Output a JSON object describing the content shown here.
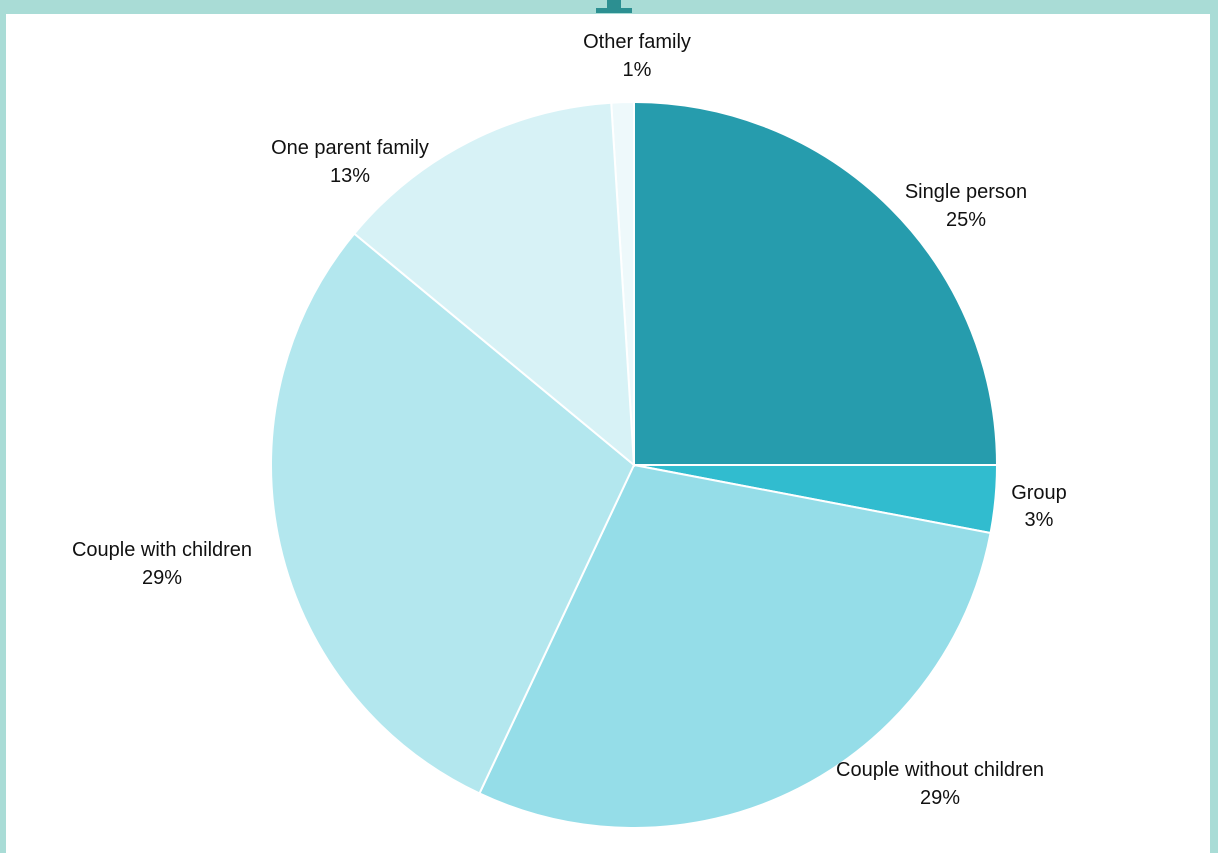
{
  "chart_data": {
    "type": "pie",
    "categories": [
      "Single person",
      "Group",
      "Couple without children",
      "Couple with children",
      "One parent family",
      "Other family"
    ],
    "values": [
      25,
      3,
      29,
      29,
      13,
      1
    ],
    "labels": [
      "25%",
      "3%",
      "29%",
      "29%",
      "13%",
      "1%"
    ],
    "colors": [
      "#269cad",
      "#31bccf",
      "#95dde8",
      "#b3e7ee",
      "#d7f2f6",
      "#eef9fb"
    ],
    "legend": "none"
  },
  "frame_color": "#a9dcd6",
  "accent_color": "#2c8f91"
}
